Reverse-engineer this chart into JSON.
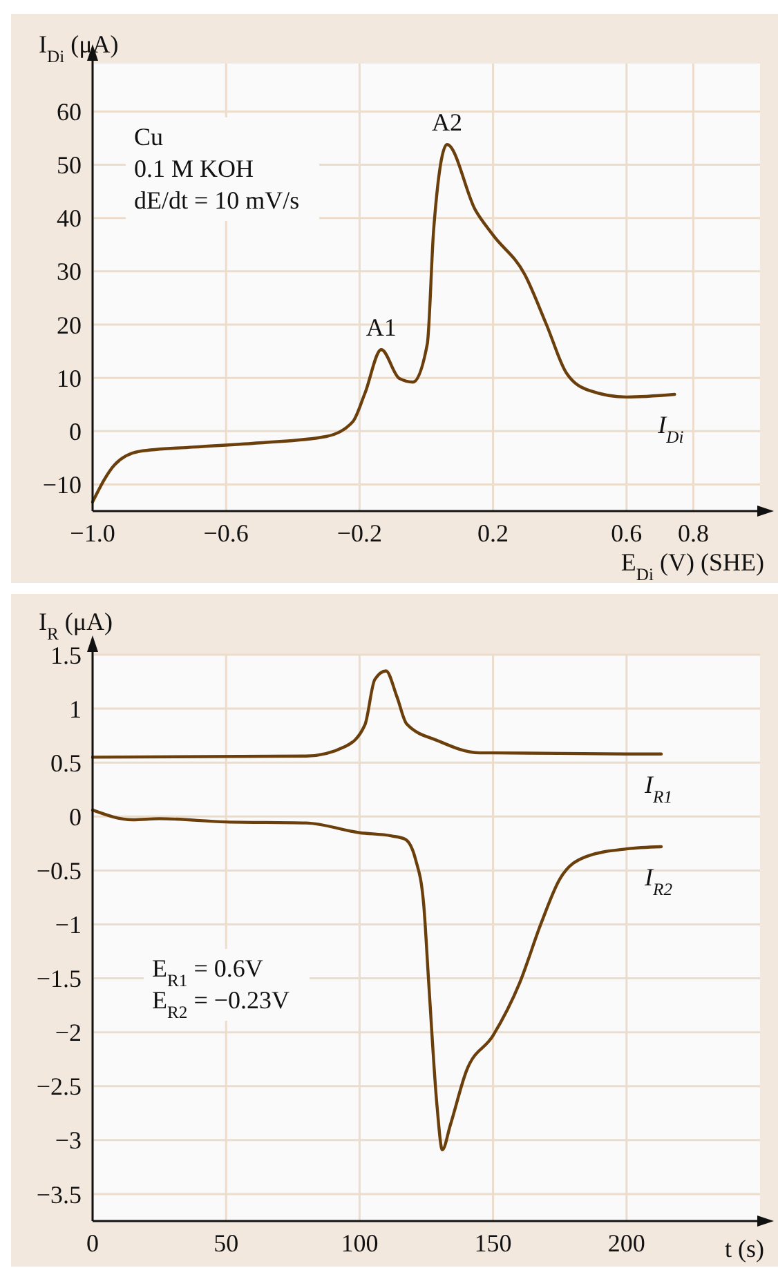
{
  "chart_data": [
    {
      "type": "line",
      "xlabel": "E$_{Di}$ (V) (SHE)",
      "ylabel": "I$_{Di}$ (μA)",
      "xlim": [
        -1,
        1
      ],
      "ylim": [
        -15,
        69
      ],
      "xticks": [
        {
          "value": -1,
          "label": "−1.0"
        },
        {
          "value": -0.6,
          "label": "−0.6"
        },
        {
          "value": -0.2,
          "label": "−0.2"
        },
        0.2,
        0.6,
        0.8
      ],
      "yticks": [
        {
          "value": -10,
          "label": "−10"
        },
        0,
        10,
        20,
        30,
        40,
        50,
        60
      ],
      "grid": true,
      "series": [
        {
          "name": "I$_{Di}$",
          "color": "#6b3f0c",
          "x": [
            -1,
            -0.934,
            -0.86,
            -0.7,
            -0.5,
            -0.3,
            -0.22,
            -0.184,
            -0.135,
            -0.081,
            -0.04,
            0.003,
            0.022,
            0.062,
            0.147,
            0.2,
            0.295,
            0.36,
            0.42,
            0.49,
            0.6,
            0.744
          ],
          "values": [
            -13.3,
            -6.3,
            -3.8,
            -3,
            -2.2,
            -1,
            1.8,
            7.1,
            15.3,
            9.9,
            9.2,
            16.4,
            37.8,
            53.8,
            41.5,
            36.8,
            29.4,
            20,
            10.9,
            7.6,
            6.4,
            6.9
          ]
        }
      ],
      "annotations": [
        {
          "text": "A1",
          "x": -0.135,
          "y": 15.3
        },
        {
          "text": "A2",
          "x": 0.062,
          "y": 53.8
        },
        "Cu",
        "0.1 M KOH",
        "dE/dt = 10 mV/s"
      ]
    },
    {
      "type": "line",
      "xlabel": "t (s)",
      "ylabel": "I$_{R}$ (μA)",
      "xlim": [
        0,
        250
      ],
      "ylim": [
        -3.75,
        1.5
      ],
      "xticks": [
        0,
        50,
        100,
        150,
        200
      ],
      "yticks": [
        1.5,
        1,
        0.5,
        0,
        {
          "value": -0.5,
          "label": "−0.5"
        },
        {
          "value": -1,
          "label": "−1"
        },
        {
          "value": -1.5,
          "label": "−1.5"
        },
        {
          "value": -2,
          "label": "−2"
        },
        {
          "value": -2.5,
          "label": "−2.5"
        },
        {
          "value": -3,
          "label": "−3"
        },
        {
          "value": -3.5,
          "label": "−3.5"
        }
      ],
      "grid": true,
      "series": [
        {
          "name": "I$_{R1}$",
          "color": "#6b3f0c",
          "x": [
            0,
            80,
            94.7,
            102,
            105.7,
            109.9,
            114,
            117.6,
            129.6,
            145,
            150,
            200,
            213
          ],
          "values": [
            0.55,
            0.56,
            0.65,
            0.85,
            1.27,
            1.35,
            1.11,
            0.86,
            0.7,
            0.59,
            0.59,
            0.58,
            0.58
          ]
        },
        {
          "name": "I$_{R2}$",
          "color": "#6b3f0c",
          "x": [
            0,
            15,
            25,
            50,
            80,
            100,
            112,
            117,
            121,
            124,
            126,
            129,
            131,
            134,
            140,
            150,
            160,
            168,
            175,
            185,
            200,
            213
          ],
          "values": [
            0.06,
            -0.03,
            -0.02,
            -0.05,
            -0.06,
            -0.15,
            -0.18,
            -0.21,
            -0.4,
            -0.81,
            -1.58,
            -2.68,
            -3.09,
            -2.86,
            -2.36,
            -2.03,
            -1.54,
            -0.99,
            -0.58,
            -0.37,
            -0.3,
            -0.28
          ]
        }
      ],
      "annotations": [
        "E$_{R1}$ = 0.6V",
        "E$_{R2}$ = −0.23V"
      ]
    }
  ]
}
